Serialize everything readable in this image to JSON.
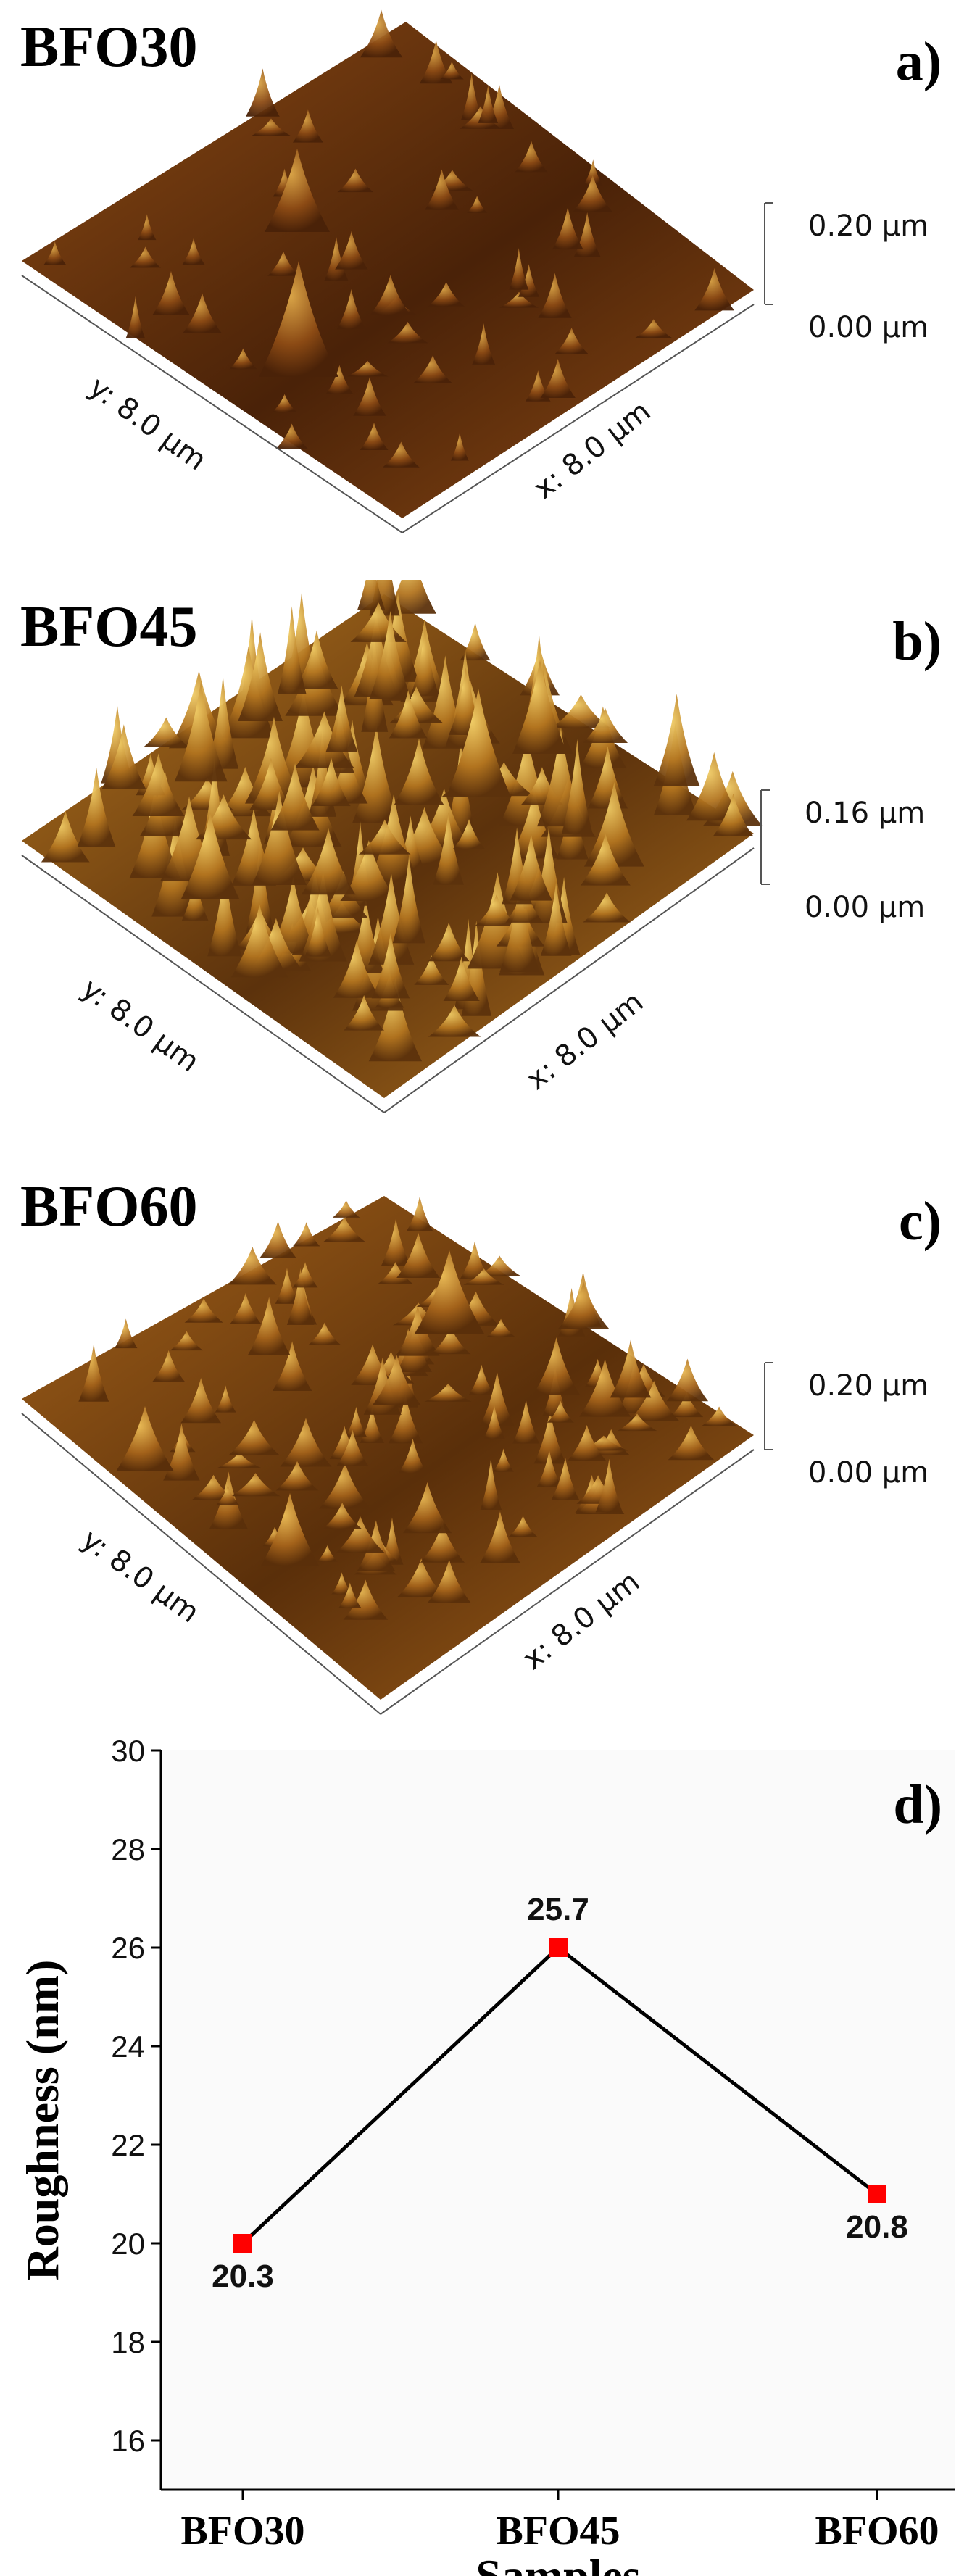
{
  "panels": [
    {
      "sample": "BFO30",
      "letter": "a)",
      "z_top": "0.20 µm",
      "z_bottom": "0.00 µm",
      "y_axis": "y: 8.0 µm",
      "x_axis": "x: 8.0 µm",
      "colors": {
        "dark": "#4a2208",
        "mid": "#8b4a14",
        "light": "#d9a447"
      }
    },
    {
      "sample": "BFO45",
      "letter": "b)",
      "z_top": "0.16 µm",
      "z_bottom": "0.00 µm",
      "y_axis": "y: 8.0 µm",
      "x_axis": "x: 8.0 µm",
      "colors": {
        "dark": "#5c320c",
        "mid": "#b2741f",
        "light": "#f0cc66"
      }
    },
    {
      "sample": "BFO60",
      "letter": "c)",
      "z_top": "0.20 µm",
      "z_bottom": "0.00 µm",
      "y_axis": "y: 8.0 µm",
      "x_axis": "x: 8.0 µm",
      "colors": {
        "dark": "#5a2f0a",
        "mid": "#a3621a",
        "light": "#e8b955"
      }
    }
  ],
  "chart_data": {
    "type": "line",
    "letter": "d)",
    "categories": [
      "BFO30",
      "BFO45",
      "BFO60"
    ],
    "series": [
      {
        "values": [
          20,
          26,
          21
        ],
        "data_labels": [
          "20.3",
          "25.7",
          "20.8"
        ],
        "marker_color": "#ff0000",
        "line_color": "#000000"
      }
    ],
    "xlabel": "Samples",
    "ylabel": "Roughness (nm)",
    "ylim": [
      15,
      30
    ],
    "yticks": [
      16,
      18,
      20,
      22,
      24,
      26,
      28,
      30
    ],
    "grid": false,
    "legend": "none"
  }
}
